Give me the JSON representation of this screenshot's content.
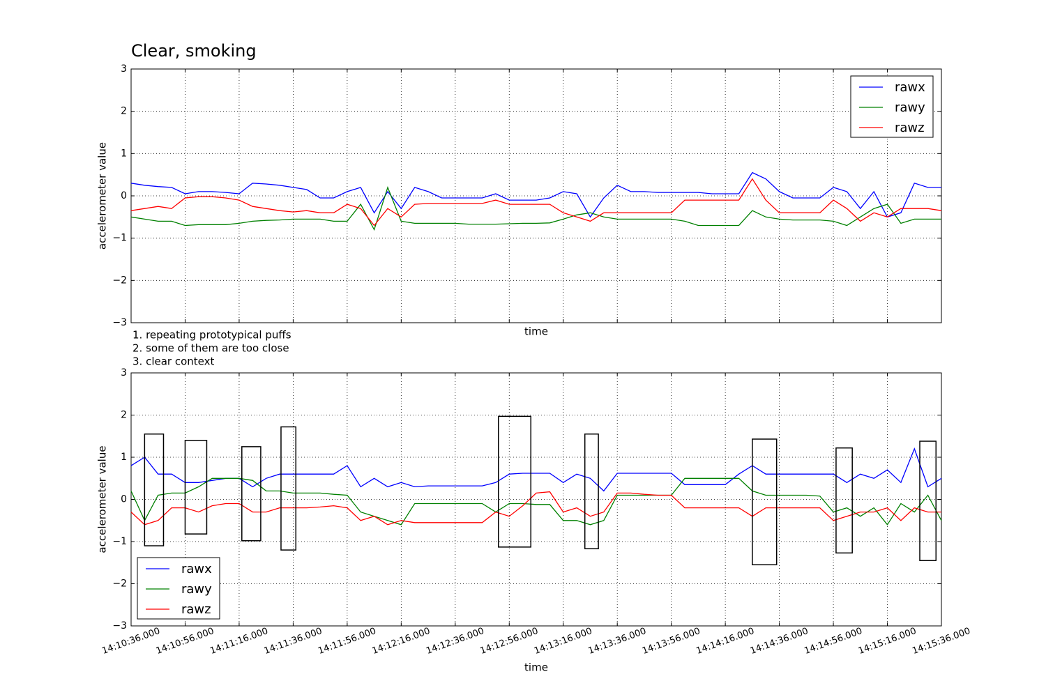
{
  "chart_data": [
    {
      "type": "line",
      "title": "Clear, smoking",
      "xlabel": "time",
      "ylabel": "accelerometer value",
      "x": [
        "14:10:36.000",
        "14:10:41.000",
        "14:10:46.000",
        "14:10:51.000",
        "14:10:56.000",
        "14:11:01.000",
        "14:11:06.000",
        "14:11:11.000",
        "14:11:16.000",
        "14:11:21.000",
        "14:11:26.000",
        "14:11:31.000",
        "14:11:36.000",
        "14:11:41.000",
        "14:11:46.000",
        "14:11:51.000",
        "14:11:56.000",
        "14:12:01.000",
        "14:12:06.000",
        "14:12:11.000",
        "14:12:16.000",
        "14:12:21.000",
        "14:12:26.000",
        "14:12:31.000",
        "14:12:36.000",
        "14:12:41.000",
        "14:12:46.000",
        "14:12:51.000",
        "14:12:56.000",
        "14:13:01.000",
        "14:13:06.000",
        "14:13:11.000",
        "14:13:16.000",
        "14:13:21.000",
        "14:13:26.000",
        "14:13:31.000",
        "14:13:36.000",
        "14:13:41.000",
        "14:13:46.000",
        "14:13:51.000",
        "14:13:56.000",
        "14:14:01.000",
        "14:14:06.000",
        "14:14:11.000",
        "14:14:16.000",
        "14:14:21.000",
        "14:14:26.000",
        "14:14:31.000",
        "14:14:36.000",
        "14:14:41.000",
        "14:14:46.000",
        "14:14:51.000",
        "14:14:56.000",
        "14:15:01.000",
        "14:15:06.000",
        "14:15:11.000",
        "14:15:16.000",
        "14:15:21.000",
        "14:15:26.000",
        "14:15:31.000",
        "14:15:36.000"
      ],
      "series": [
        {
          "name": "rawx",
          "color": "#0000ff",
          "values": [
            0.3,
            0.25,
            0.22,
            0.2,
            0.05,
            0.1,
            0.1,
            0.08,
            0.05,
            0.3,
            0.28,
            0.25,
            0.2,
            0.15,
            -0.05,
            -0.05,
            0.1,
            0.2,
            -0.4,
            0.1,
            -0.3,
            0.2,
            0.1,
            -0.05,
            -0.05,
            -0.05,
            -0.05,
            0.05,
            -0.1,
            -0.1,
            -0.1,
            -0.05,
            0.1,
            0.05,
            -0.5,
            -0.05,
            0.25,
            0.1,
            0.1,
            0.08,
            0.08,
            0.08,
            0.08,
            0.05,
            0.05,
            0.05,
            0.55,
            0.4,
            0.1,
            -0.05,
            -0.05,
            -0.05,
            0.2,
            0.1,
            -0.3,
            0.1,
            -0.5,
            -0.4,
            0.3,
            0.2,
            0.2
          ]
        },
        {
          "name": "rawy",
          "color": "#008000",
          "values": [
            -0.5,
            -0.55,
            -0.6,
            -0.6,
            -0.7,
            -0.68,
            -0.68,
            -0.68,
            -0.65,
            -0.6,
            -0.58,
            -0.57,
            -0.55,
            -0.55,
            -0.55,
            -0.6,
            -0.6,
            -0.2,
            -0.8,
            0.2,
            -0.6,
            -0.65,
            -0.65,
            -0.65,
            -0.65,
            -0.67,
            -0.67,
            -0.67,
            -0.66,
            -0.65,
            -0.65,
            -0.64,
            -0.55,
            -0.45,
            -0.4,
            -0.5,
            -0.55,
            -0.55,
            -0.55,
            -0.55,
            -0.55,
            -0.6,
            -0.7,
            -0.7,
            -0.7,
            -0.7,
            -0.35,
            -0.5,
            -0.55,
            -0.57,
            -0.57,
            -0.57,
            -0.6,
            -0.7,
            -0.5,
            -0.3,
            -0.2,
            -0.65,
            -0.55,
            -0.55,
            -0.55
          ]
        },
        {
          "name": "rawz",
          "color": "#ff0000",
          "values": [
            -0.35,
            -0.3,
            -0.25,
            -0.3,
            -0.05,
            -0.02,
            -0.02,
            -0.05,
            -0.1,
            -0.25,
            -0.3,
            -0.35,
            -0.38,
            -0.35,
            -0.4,
            -0.4,
            -0.2,
            -0.3,
            -0.7,
            -0.3,
            -0.5,
            -0.2,
            -0.18,
            -0.18,
            -0.18,
            -0.18,
            -0.18,
            -0.1,
            -0.2,
            -0.2,
            -0.2,
            -0.2,
            -0.4,
            -0.5,
            -0.6,
            -0.4,
            -0.4,
            -0.4,
            -0.4,
            -0.4,
            -0.4,
            -0.1,
            -0.1,
            -0.1,
            -0.1,
            -0.1,
            0.4,
            -0.1,
            -0.4,
            -0.4,
            -0.4,
            -0.4,
            -0.1,
            -0.3,
            -0.6,
            -0.4,
            -0.5,
            -0.3,
            -0.3,
            -0.3,
            -0.35
          ]
        }
      ],
      "xlim": [
        "14:10:36.000",
        "14:15:36.000"
      ],
      "xticks": [
        "14:10:36.000",
        "14:10:56.000",
        "14:11:16.000",
        "14:11:36.000",
        "14:11:56.000",
        "14:12:16.000",
        "14:12:36.000",
        "14:12:56.000",
        "14:13:16.000",
        "14:13:36.000",
        "14:13:56.000",
        "14:14:16.000",
        "14:14:36.000",
        "14:14:56.000",
        "14:15:16.000",
        "14:15:36.000"
      ],
      "show_xtick_labels": false,
      "ylim": [
        -3,
        3
      ],
      "yticks": [
        {
          "value": -3,
          "label": "−3"
        },
        {
          "value": -2,
          "label": "−2"
        },
        {
          "value": -1,
          "label": "−1"
        },
        0,
        1,
        2,
        3
      ],
      "grid": true,
      "legend": "upper right"
    },
    {
      "type": "line",
      "xlabel": "time",
      "ylabel": "accelerometer value",
      "annotations": [
        "1. repeating prototypical puffs",
        "2. some of them are too close",
        "3. clear context"
      ],
      "x": [
        "14:10:36.000",
        "14:10:41.000",
        "14:10:46.000",
        "14:10:51.000",
        "14:10:56.000",
        "14:11:01.000",
        "14:11:06.000",
        "14:11:11.000",
        "14:11:16.000",
        "14:11:21.000",
        "14:11:26.000",
        "14:11:31.000",
        "14:11:36.000",
        "14:11:41.000",
        "14:11:46.000",
        "14:11:51.000",
        "14:11:56.000",
        "14:12:01.000",
        "14:12:06.000",
        "14:12:11.000",
        "14:12:16.000",
        "14:12:21.000",
        "14:12:26.000",
        "14:12:31.000",
        "14:12:36.000",
        "14:12:41.000",
        "14:12:46.000",
        "14:12:51.000",
        "14:12:56.000",
        "14:13:01.000",
        "14:13:06.000",
        "14:13:11.000",
        "14:13:16.000",
        "14:13:21.000",
        "14:13:26.000",
        "14:13:31.000",
        "14:13:36.000",
        "14:13:41.000",
        "14:13:46.000",
        "14:13:51.000",
        "14:13:56.000",
        "14:14:01.000",
        "14:14:06.000",
        "14:14:11.000",
        "14:14:16.000",
        "14:14:21.000",
        "14:14:26.000",
        "14:14:31.000",
        "14:14:36.000",
        "14:14:41.000",
        "14:14:46.000",
        "14:14:51.000",
        "14:14:56.000",
        "14:15:01.000",
        "14:15:06.000",
        "14:15:11.000",
        "14:15:16.000",
        "14:15:21.000",
        "14:15:26.000",
        "14:15:31.000",
        "14:15:36.000"
      ],
      "series": [
        {
          "name": "rawx",
          "color": "#0000ff",
          "values": [
            0.8,
            1.0,
            0.6,
            0.6,
            0.4,
            0.4,
            0.45,
            0.5,
            0.5,
            0.3,
            0.5,
            0.6,
            0.6,
            0.6,
            0.6,
            0.6,
            0.8,
            0.3,
            0.5,
            0.3,
            0.4,
            0.3,
            0.32,
            0.32,
            0.32,
            0.32,
            0.32,
            0.4,
            0.6,
            0.62,
            0.62,
            0.62,
            0.4,
            0.6,
            0.5,
            0.2,
            0.62,
            0.62,
            0.62,
            0.62,
            0.62,
            0.35,
            0.35,
            0.35,
            0.35,
            0.6,
            0.8,
            0.6,
            0.6,
            0.6,
            0.6,
            0.6,
            0.6,
            0.4,
            0.6,
            0.5,
            0.7,
            0.4,
            1.2,
            0.3,
            0.5
          ]
        },
        {
          "name": "rawy",
          "color": "#008000",
          "values": [
            0.2,
            -0.5,
            0.1,
            0.15,
            0.15,
            0.3,
            0.5,
            0.5,
            0.5,
            0.45,
            0.2,
            0.2,
            0.15,
            0.15,
            0.15,
            0.12,
            0.1,
            -0.3,
            -0.4,
            -0.5,
            -0.6,
            -0.1,
            -0.1,
            -0.1,
            -0.1,
            -0.1,
            -0.1,
            -0.3,
            -0.1,
            -0.1,
            -0.12,
            -0.12,
            -0.5,
            -0.5,
            -0.6,
            -0.5,
            0.1,
            0.1,
            0.1,
            0.1,
            0.1,
            0.5,
            0.5,
            0.5,
            0.5,
            0.5,
            0.2,
            0.1,
            0.1,
            0.1,
            0.1,
            0.08,
            -0.3,
            -0.2,
            -0.4,
            -0.2,
            -0.6,
            -0.1,
            -0.3,
            0.1,
            -0.5
          ]
        },
        {
          "name": "rawz",
          "color": "#ff0000",
          "values": [
            -0.3,
            -0.6,
            -0.5,
            -0.2,
            -0.2,
            -0.3,
            -0.15,
            -0.1,
            -0.1,
            -0.3,
            -0.3,
            -0.2,
            -0.2,
            -0.2,
            -0.18,
            -0.15,
            -0.2,
            -0.5,
            -0.4,
            -0.6,
            -0.5,
            -0.55,
            -0.55,
            -0.55,
            -0.55,
            -0.55,
            -0.55,
            -0.3,
            -0.4,
            -0.15,
            0.15,
            0.18,
            -0.3,
            -0.2,
            -0.4,
            -0.3,
            0.15,
            0.15,
            0.12,
            0.1,
            0.1,
            -0.2,
            -0.2,
            -0.2,
            -0.2,
            -0.2,
            -0.4,
            -0.2,
            -0.2,
            -0.2,
            -0.2,
            -0.2,
            -0.5,
            -0.4,
            -0.3,
            -0.3,
            -0.2,
            -0.5,
            -0.2,
            -0.3,
            -0.3
          ]
        }
      ],
      "boxes": [
        {
          "x": [
            "14:10:41.000",
            "14:10:48.000"
          ],
          "y": [
            -1.1,
            1.55
          ]
        },
        {
          "x": [
            "14:10:56.000",
            "14:11:04.000"
          ],
          "y": [
            -0.82,
            1.4
          ]
        },
        {
          "x": [
            "14:11:17.000",
            "14:11:24.000"
          ],
          "y": [
            -0.98,
            1.25
          ]
        },
        {
          "x": [
            "14:11:31.500",
            "14:11:37.000"
          ],
          "y": [
            -1.2,
            1.72
          ]
        },
        {
          "x": [
            "14:12:52.000",
            "14:13:04.000"
          ],
          "y": [
            -1.13,
            1.97
          ]
        },
        {
          "x": [
            "14:13:24.000",
            "14:13:29.000"
          ],
          "y": [
            -1.17,
            1.55
          ]
        },
        {
          "x": [
            "14:14:26.000",
            "14:14:35.000"
          ],
          "y": [
            -1.55,
            1.43
          ]
        },
        {
          "x": [
            "14:14:57.000",
            "14:15:03.000"
          ],
          "y": [
            -1.27,
            1.22
          ]
        },
        {
          "x": [
            "14:15:28.000",
            "14:15:34.000"
          ],
          "y": [
            -1.45,
            1.38
          ]
        }
      ],
      "xlim": [
        "14:10:36.000",
        "14:15:36.000"
      ],
      "xticks": [
        "14:10:36.000",
        "14:10:56.000",
        "14:11:16.000",
        "14:11:36.000",
        "14:11:56.000",
        "14:12:16.000",
        "14:12:36.000",
        "14:12:56.000",
        "14:13:16.000",
        "14:13:36.000",
        "14:13:56.000",
        "14:14:16.000",
        "14:14:36.000",
        "14:14:56.000",
        "14:15:16.000",
        "14:15:36.000"
      ],
      "show_xtick_labels": true,
      "ylim": [
        -3,
        3
      ],
      "yticks": [
        {
          "value": -3,
          "label": "−3"
        },
        {
          "value": -2,
          "label": "−2"
        },
        {
          "value": -1,
          "label": "−1"
        },
        0,
        1,
        2,
        3
      ],
      "grid": true,
      "legend": "lower left"
    }
  ]
}
